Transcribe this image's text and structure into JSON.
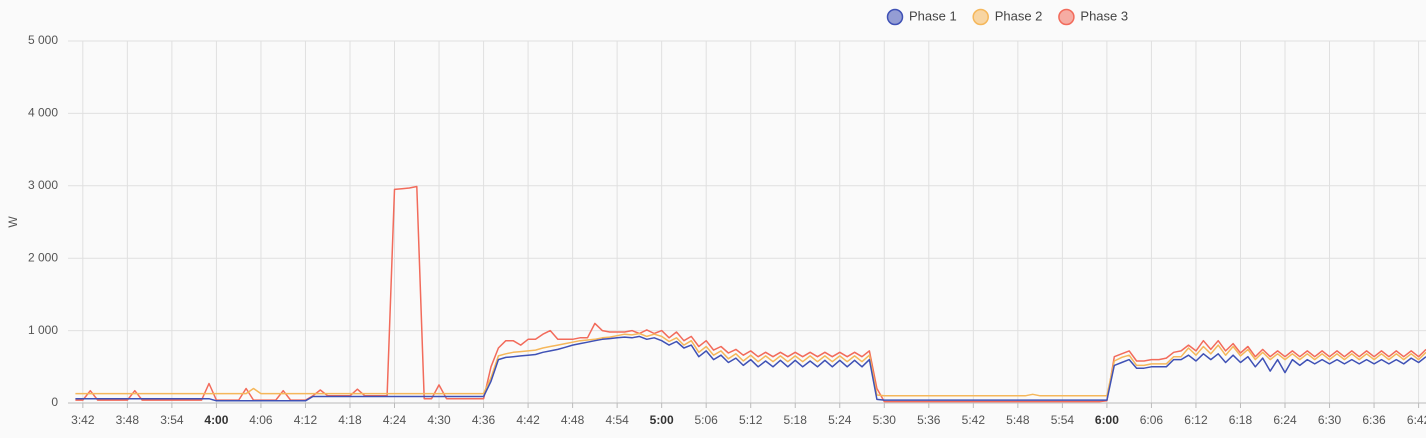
{
  "chart_data": {
    "type": "line",
    "y_label": "W",
    "legend": "top",
    "grid": true,
    "x": [
      "3:41",
      "3:42",
      "3:43",
      "3:44",
      "3:45",
      "3:46",
      "3:47",
      "3:48",
      "3:49",
      "3:50",
      "3:51",
      "3:52",
      "3:53",
      "3:54",
      "3:55",
      "3:56",
      "3:57",
      "3:58",
      "3:59",
      "4:00",
      "4:01",
      "4:02",
      "4:03",
      "4:04",
      "4:05",
      "4:06",
      "4:07",
      "4:08",
      "4:09",
      "4:10",
      "4:11",
      "4:12",
      "4:13",
      "4:14",
      "4:15",
      "4:16",
      "4:17",
      "4:18",
      "4:19",
      "4:20",
      "4:21",
      "4:22",
      "4:23",
      "4:24",
      "4:25",
      "4:26",
      "4:27",
      "4:28",
      "4:29",
      "4:30",
      "4:31",
      "4:32",
      "4:33",
      "4:34",
      "4:35",
      "4:36",
      "4:37",
      "4:38",
      "4:39",
      "4:40",
      "4:41",
      "4:42",
      "4:43",
      "4:44",
      "4:45",
      "4:46",
      "4:47",
      "4:48",
      "4:49",
      "4:50",
      "4:51",
      "4:52",
      "4:53",
      "4:54",
      "4:55",
      "4:56",
      "4:57",
      "4:58",
      "4:59",
      "5:00",
      "5:01",
      "5:02",
      "5:03",
      "5:04",
      "5:05",
      "5:06",
      "5:07",
      "5:08",
      "5:09",
      "5:10",
      "5:11",
      "5:12",
      "5:13",
      "5:14",
      "5:15",
      "5:16",
      "5:17",
      "5:18",
      "5:19",
      "5:20",
      "5:21",
      "5:22",
      "5:23",
      "5:24",
      "5:25",
      "5:26",
      "5:27",
      "5:28",
      "5:29",
      "5:30",
      "5:31",
      "5:32",
      "5:33",
      "5:34",
      "5:35",
      "5:36",
      "5:37",
      "5:38",
      "5:39",
      "5:40",
      "5:41",
      "5:42",
      "5:43",
      "5:44",
      "5:45",
      "5:46",
      "5:47",
      "5:48",
      "5:49",
      "5:50",
      "5:51",
      "5:52",
      "5:53",
      "5:54",
      "5:55",
      "5:56",
      "5:57",
      "5:58",
      "5:59",
      "6:00",
      "6:01",
      "6:02",
      "6:03",
      "6:04",
      "6:05",
      "6:06",
      "6:07",
      "6:08",
      "6:09",
      "6:10",
      "6:11",
      "6:12",
      "6:13",
      "6:14",
      "6:15",
      "6:16",
      "6:17",
      "6:18",
      "6:19",
      "6:20",
      "6:21",
      "6:22",
      "6:23",
      "6:24",
      "6:25",
      "6:26",
      "6:27",
      "6:28",
      "6:29",
      "6:30",
      "6:31",
      "6:32",
      "6:33",
      "6:34",
      "6:35",
      "6:36",
      "6:37",
      "6:38",
      "6:39",
      "6:40",
      "6:41",
      "6:42",
      "6:43"
    ],
    "series": [
      {
        "name": "Phase 1",
        "color": "#3f51b5",
        "values": [
          60,
          60,
          60,
          60,
          60,
          60,
          60,
          60,
          60,
          60,
          60,
          60,
          60,
          60,
          60,
          60,
          60,
          60,
          60,
          30,
          30,
          30,
          30,
          30,
          30,
          30,
          30,
          30,
          30,
          30,
          30,
          30,
          90,
          90,
          90,
          90,
          90,
          90,
          90,
          90,
          90,
          90,
          90,
          90,
          90,
          90,
          90,
          90,
          90,
          90,
          90,
          90,
          90,
          90,
          90,
          90,
          300,
          600,
          630,
          640,
          650,
          660,
          670,
          700,
          720,
          740,
          770,
          800,
          820,
          840,
          860,
          880,
          890,
          900,
          910,
          900,
          920,
          880,
          900,
          860,
          800,
          850,
          760,
          800,
          640,
          720,
          600,
          660,
          560,
          620,
          520,
          600,
          500,
          580,
          500,
          590,
          500,
          590,
          500,
          580,
          500,
          590,
          500,
          590,
          500,
          590,
          500,
          600,
          50,
          40,
          40,
          40,
          40,
          40,
          40,
          40,
          40,
          40,
          40,
          40,
          40,
          40,
          40,
          40,
          40,
          40,
          40,
          40,
          40,
          40,
          40,
          40,
          40,
          40,
          40,
          40,
          40,
          40,
          40,
          40,
          520,
          560,
          600,
          480,
          480,
          500,
          500,
          500,
          600,
          600,
          660,
          580,
          680,
          600,
          680,
          560,
          660,
          560,
          640,
          500,
          620,
          440,
          600,
          420,
          600,
          520,
          600,
          540,
          600,
          540,
          600,
          540,
          600,
          540,
          600,
          540,
          600,
          540,
          600,
          540,
          620,
          560,
          640
        ]
      },
      {
        "name": "Phase 2",
        "color": "#f5b75a",
        "values": [
          130,
          130,
          130,
          130,
          130,
          130,
          130,
          130,
          130,
          130,
          130,
          130,
          130,
          130,
          130,
          130,
          130,
          130,
          130,
          130,
          130,
          130,
          130,
          130,
          200,
          130,
          130,
          130,
          130,
          130,
          130,
          130,
          130,
          130,
          130,
          130,
          130,
          130,
          130,
          130,
          130,
          130,
          130,
          130,
          130,
          130,
          130,
          130,
          130,
          130,
          130,
          130,
          130,
          130,
          130,
          130,
          350,
          650,
          680,
          700,
          710,
          720,
          730,
          760,
          780,
          800,
          820,
          840,
          860,
          870,
          880,
          900,
          910,
          930,
          950,
          940,
          960,
          920,
          950,
          920,
          850,
          900,
          800,
          860,
          700,
          780,
          660,
          720,
          610,
          680,
          580,
          660,
          570,
          650,
          570,
          650,
          570,
          650,
          570,
          650,
          570,
          650,
          570,
          650,
          570,
          650,
          570,
          660,
          110,
          100,
          100,
          100,
          100,
          100,
          100,
          100,
          100,
          100,
          100,
          100,
          100,
          100,
          100,
          100,
          100,
          100,
          100,
          100,
          100,
          120,
          100,
          100,
          100,
          100,
          100,
          100,
          100,
          100,
          100,
          100,
          580,
          630,
          660,
          520,
          520,
          540,
          540,
          540,
          640,
          640,
          760,
          660,
          780,
          680,
          800,
          660,
          780,
          650,
          740,
          600,
          700,
          600,
          680,
          600,
          680,
          600,
          680,
          600,
          680,
          600,
          680,
          600,
          680,
          600,
          680,
          600,
          680,
          600,
          680,
          600,
          680,
          600,
          700
        ]
      },
      {
        "name": "Phase 3",
        "color": "#f26b5b",
        "values": [
          40,
          40,
          170,
          40,
          40,
          40,
          40,
          40,
          170,
          40,
          40,
          40,
          40,
          40,
          40,
          40,
          40,
          40,
          270,
          40,
          40,
          40,
          40,
          200,
          40,
          40,
          40,
          40,
          170,
          40,
          40,
          40,
          100,
          180,
          100,
          100,
          100,
          100,
          190,
          100,
          100,
          100,
          100,
          2950,
          2960,
          2970,
          2990,
          60,
          60,
          250,
          60,
          60,
          60,
          60,
          60,
          60,
          500,
          760,
          860,
          860,
          800,
          880,
          880,
          950,
          1000,
          880,
          880,
          880,
          900,
          900,
          1100,
          1000,
          980,
          980,
          980,
          1000,
          960,
          1010,
          960,
          1000,
          900,
          980,
          860,
          920,
          780,
          860,
          730,
          780,
          690,
          740,
          660,
          720,
          640,
          700,
          640,
          700,
          640,
          700,
          640,
          700,
          640,
          700,
          640,
          700,
          640,
          700,
          640,
          720,
          200,
          20,
          20,
          20,
          20,
          20,
          20,
          20,
          20,
          20,
          20,
          20,
          20,
          20,
          20,
          20,
          20,
          20,
          20,
          20,
          20,
          20,
          20,
          20,
          20,
          20,
          20,
          20,
          20,
          20,
          20,
          30,
          640,
          680,
          720,
          580,
          580,
          600,
          600,
          620,
          700,
          720,
          800,
          720,
          860,
          740,
          860,
          720,
          820,
          690,
          780,
          640,
          740,
          640,
          720,
          640,
          720,
          640,
          720,
          640,
          720,
          640,
          720,
          640,
          720,
          640,
          720,
          640,
          720,
          640,
          720,
          640,
          720,
          640,
          740
        ]
      }
    ],
    "xlim": [
      "3:40",
      "6:43"
    ],
    "xticks": [
      "3:42",
      "3:48",
      "3:54",
      "4:00",
      "4:06",
      "4:12",
      "4:18",
      "4:24",
      "4:30",
      "4:36",
      "4:42",
      "4:48",
      "4:54",
      "5:00",
      "5:06",
      "5:12",
      "5:18",
      "5:24",
      "5:30",
      "5:36",
      "5:42",
      "5:48",
      "5:54",
      "6:00",
      "6:06",
      "6:12",
      "6:18",
      "6:24",
      "6:30",
      "6:36",
      "6:42"
    ],
    "ylim": [
      0,
      5000
    ],
    "yticks": [
      0,
      {
        "value": 1000,
        "label": "1 000"
      },
      {
        "value": 2000,
        "label": "2 000"
      },
      {
        "value": 3000,
        "label": "3 000"
      },
      {
        "value": 4000,
        "label": "4 000"
      },
      {
        "value": 5000,
        "label": "5 000"
      }
    ]
  }
}
